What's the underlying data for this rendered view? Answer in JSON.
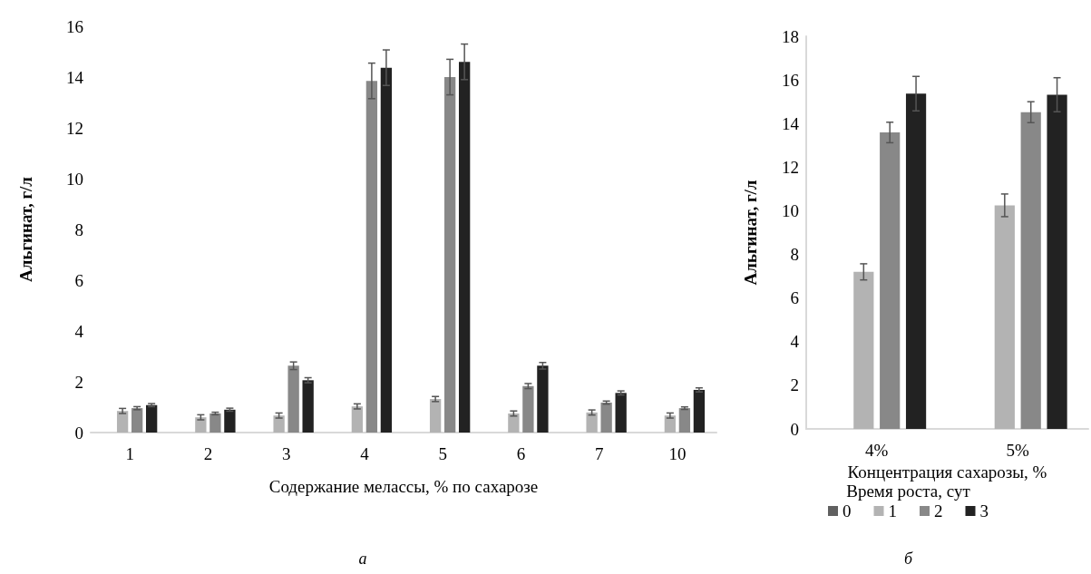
{
  "chart_data": [
    {
      "type": "bar",
      "categories": [
        "1",
        "2",
        "3",
        "4",
        "5",
        "6",
        "7",
        "10"
      ],
      "xlabel": "Содержание мелассы, % по сахарозе",
      "ylabel": "Альгинат, г/л",
      "ylim": [
        0,
        16
      ],
      "yticks": [
        0,
        2,
        4,
        6,
        8,
        10,
        12,
        14,
        16
      ],
      "grid": false,
      "legend": false,
      "annotations": [
        "а"
      ],
      "series": [
        {
          "color": "#606060",
          "values": [
            0,
            0,
            0,
            0,
            0,
            0,
            0,
            0
          ]
        },
        {
          "color": "#b3b3b3",
          "values": [
            0.85,
            0.6,
            0.67,
            1.03,
            1.32,
            0.75,
            0.79,
            0.67
          ],
          "errors": [
            0.1,
            0.1,
            0.1,
            0.1,
            0.1,
            0.1,
            0.1,
            0.1
          ]
        },
        {
          "color": "#888888",
          "values": [
            0.96,
            0.75,
            2.63,
            13.85,
            14.0,
            1.83,
            1.18,
            0.96
          ],
          "errors": [
            0.06,
            0.05,
            0.15,
            0.7,
            0.7,
            0.1,
            0.06,
            0.05
          ]
        },
        {
          "color": "#222222",
          "values": [
            1.08,
            0.9,
            2.06,
            14.37,
            14.6,
            2.63,
            1.56,
            1.68
          ],
          "errors": [
            0.06,
            0.06,
            0.1,
            0.7,
            0.7,
            0.13,
            0.08,
            0.08
          ]
        }
      ]
    },
    {
      "type": "bar",
      "categories": [
        "4%",
        "5%"
      ],
      "xlabel": "Концентрация сахарозы, %",
      "ylabel": "Альгинат, г/л",
      "ylim": [
        0,
        18
      ],
      "yticks": [
        0,
        2,
        4,
        6,
        8,
        10,
        12,
        14,
        16,
        18
      ],
      "grid": false,
      "legend": "bottom",
      "legend_title": "Время роста, сут",
      "annotations": [
        "б"
      ],
      "series": [
        {
          "name": "0",
          "color": "#606060",
          "values": [
            0,
            0
          ]
        },
        {
          "name": "1",
          "color": "#b3b3b3",
          "values": [
            7.2,
            10.25
          ],
          "errors": [
            0.37,
            0.52
          ]
        },
        {
          "name": "2",
          "color": "#888888",
          "values": [
            13.59,
            14.52
          ],
          "errors": [
            0.47,
            0.48
          ]
        },
        {
          "name": "3",
          "color": "#222222",
          "values": [
            15.37,
            15.32
          ],
          "errors": [
            0.79,
            0.78
          ]
        }
      ]
    }
  ]
}
